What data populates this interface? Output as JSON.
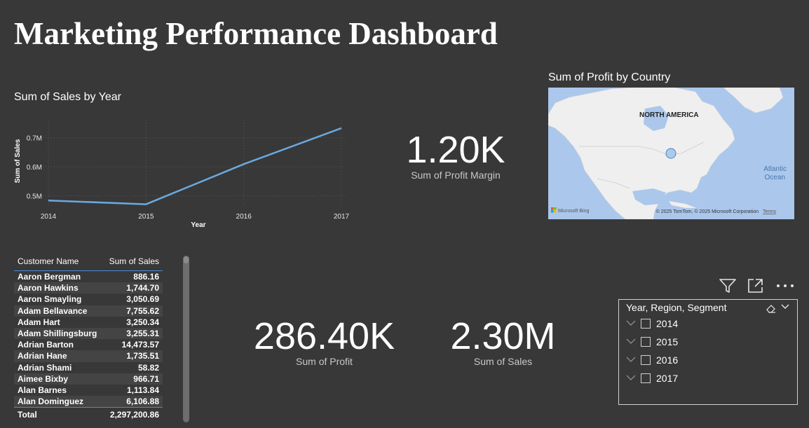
{
  "page": {
    "title": "Marketing Performance Dashboard"
  },
  "chart_data": [
    {
      "type": "line",
      "title": "Sum of Sales by Year",
      "xlabel": "Year",
      "ylabel": "Sum of Sales",
      "x": [
        "2014",
        "2015",
        "2016",
        "2017"
      ],
      "series": [
        {
          "values": [
            0.484,
            0.471,
            0.609,
            0.733
          ]
        }
      ],
      "ylim": [
        0.47,
        0.74
      ],
      "yticks": [
        {
          "value": 0.5,
          "label": "0.5M"
        },
        {
          "value": 0.6,
          "label": "0.6M"
        },
        {
          "value": 0.7,
          "label": "0.7M"
        }
      ],
      "grid": true,
      "color": "#6aa9e0"
    }
  ],
  "cards": {
    "profit_margin": {
      "value": "1.20K",
      "label": "Sum of Profit Margin"
    },
    "profit": {
      "value": "286.40K",
      "label": "Sum of Profit"
    },
    "sales": {
      "value": "2.30M",
      "label": "Sum of Sales"
    }
  },
  "map": {
    "title": "Sum of Profit by Country",
    "region_label": "NORTH AMERICA",
    "ocean_label_1": "Atlantic",
    "ocean_label_2": "Ocean",
    "brand": "Microsoft Bing",
    "copyright": "© 2025 TomTom, © 2025 Microsoft Corporation",
    "terms": "Terms",
    "bubble_color": "#a8ccf0"
  },
  "table": {
    "columns": [
      "Customer Name",
      "Sum of Sales"
    ],
    "rows": [
      [
        "Aaron Bergman",
        "886.16"
      ],
      [
        "Aaron Hawkins",
        "1,744.70"
      ],
      [
        "Aaron Smayling",
        "3,050.69"
      ],
      [
        "Adam Bellavance",
        "7,755.62"
      ],
      [
        "Adam Hart",
        "3,250.34"
      ],
      [
        "Adam Shillingsburg",
        "3,255.31"
      ],
      [
        "Adrian Barton",
        "14,473.57"
      ],
      [
        "Adrian Hane",
        "1,735.51"
      ],
      [
        "Adrian Shami",
        "58.82"
      ],
      [
        "Aimee Bixby",
        "966.71"
      ],
      [
        "Alan Barnes",
        "1,113.84"
      ],
      [
        "Alan Dominguez",
        "6,106.88"
      ]
    ],
    "total_label": "Total",
    "total_value": "2,297,200.86"
  },
  "slicer": {
    "header": "Year, Region, Segment",
    "items": [
      "2014",
      "2015",
      "2016",
      "2017"
    ],
    "icons": [
      "filter-icon",
      "focus-mode-icon",
      "more-options-icon",
      "eraser-icon",
      "chevron-down-icon"
    ]
  }
}
